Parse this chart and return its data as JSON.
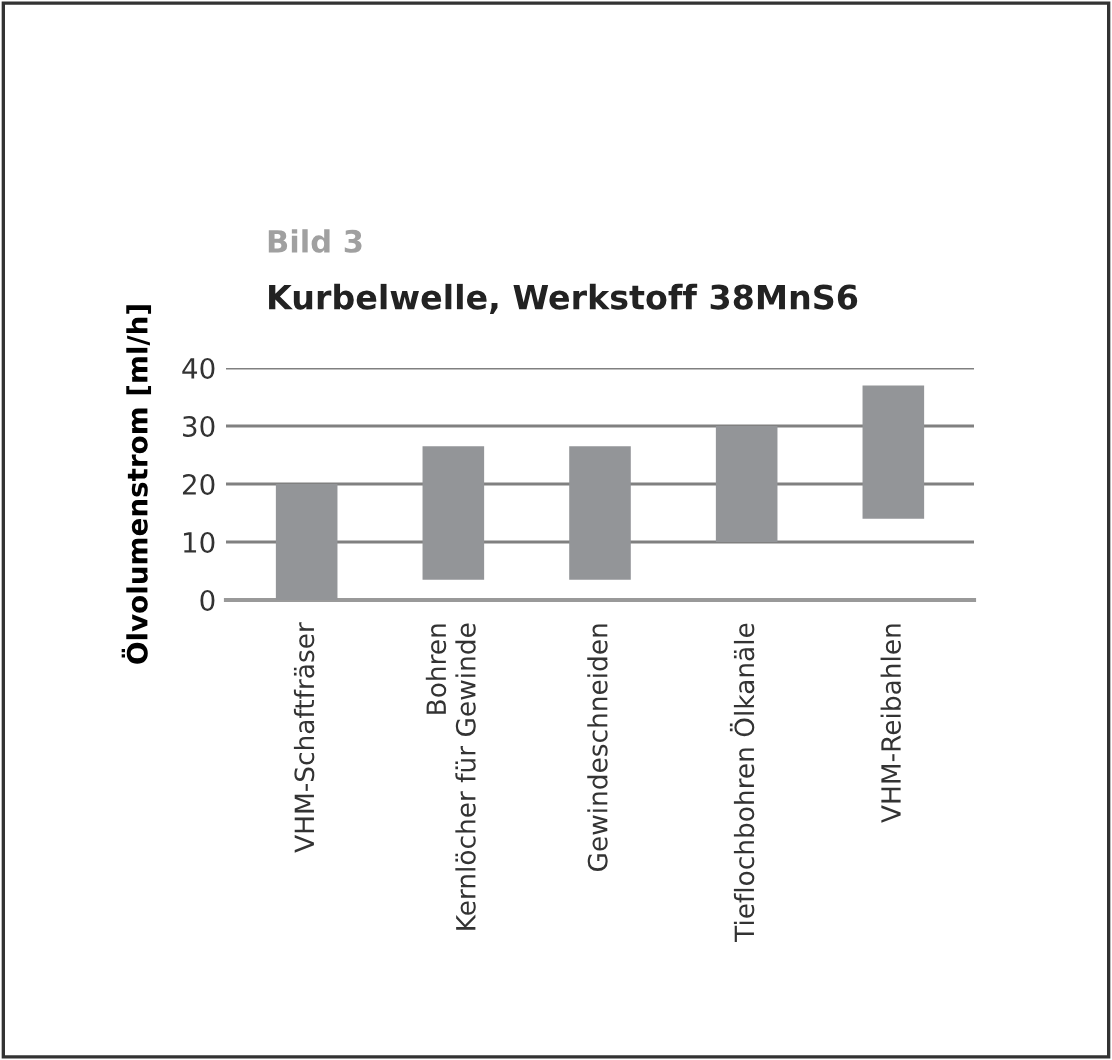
{
  "chart_data": {
    "type": "bar",
    "title": "Kurbelwelle, Werkstoff 38MnS6",
    "subtitle": "Bild 3",
    "ylabel": "Ölvolumenstrom [ml/h]",
    "categories": [
      "VHM-Schaftfräser",
      "Bohren\nKernlöcher für Gewinde",
      "Gewindeschneiden",
      "Tieflochbohren Ölkanäle",
      "VHM-Reibahlen"
    ],
    "base": [
      0,
      3.5,
      3.5,
      10,
      14
    ],
    "values": [
      20,
      23,
      23,
      20,
      23
    ],
    "color": "#939598",
    "ylim": [
      0,
      40
    ],
    "yticks": [
      0,
      10,
      20,
      30,
      40
    ],
    "grid": "y"
  }
}
